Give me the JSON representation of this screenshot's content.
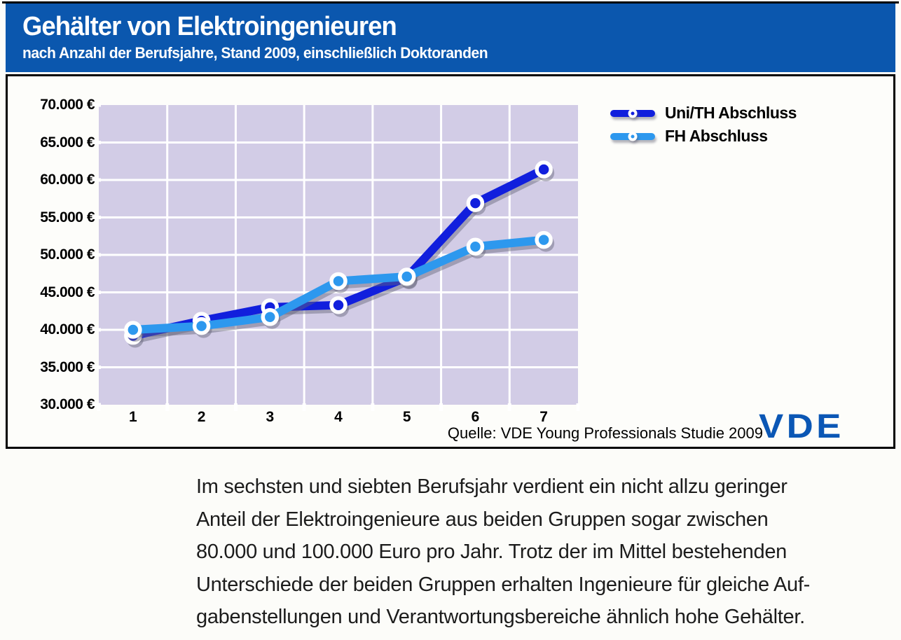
{
  "header": {
    "title": "Gehälter von Elektroingenieuren",
    "subtitle": "nach Anzahl der Berufsjahre, Stand 2009, einschließlich Doktoranden"
  },
  "colors": {
    "header_bg": "#0b57ae",
    "plot_bg": "#d2cce6",
    "grid": "#ffffff",
    "uni_line": "#111fdd",
    "fh_line": "#2d98ee",
    "shadow": "rgba(100,100,120,0.45)",
    "logo_blue": "#0b57b5"
  },
  "chart_data": {
    "type": "line",
    "title": "Gehälter von Elektroingenieuren nach Anzahl der Berufsjahre, Stand 2009",
    "categories": [
      "1",
      "2",
      "3",
      "4",
      "5",
      "6",
      "7"
    ],
    "xlabel": "",
    "ylabel": "",
    "ylim": [
      30000,
      70000
    ],
    "ytick_step": 5000,
    "ytick_labels": [
      "70.000 €",
      "65.000 €",
      "60.000 €",
      "55.000 €",
      "50.000 €",
      "45.000 €",
      "40.000 €",
      "35.000 €",
      "30.000 €"
    ],
    "grid": true,
    "legend_position": "top-right",
    "series": [
      {
        "name": "Uni/TH Abschluss",
        "color": "#111fdd",
        "values": [
          39200,
          41200,
          43000,
          43300,
          47000,
          56900,
          61400
        ]
      },
      {
        "name": "FH Abschluss",
        "color": "#2d98ee",
        "values": [
          40000,
          40500,
          41700,
          46500,
          47100,
          51100,
          52000
        ]
      }
    ]
  },
  "source": {
    "label": "Quelle: VDE Young Professionals Studie 2009"
  },
  "logo": {
    "text": "VDE"
  },
  "body": {
    "lines": [
      "Im sechsten und siebten Berufsjahr verdient ein nicht allzu geringer",
      "Anteil der Elektroingenieure aus beiden Gruppen sogar zwischen",
      "80.000 und 100.000 Euro pro Jahr. Trotz der im Mittel bestehenden",
      "Unterschiede der beiden Gruppen erhalten Ingenieure für gleiche Auf-",
      "gabenstellungen und Verantwortungsbereiche ähnlich hohe Gehälter."
    ]
  }
}
